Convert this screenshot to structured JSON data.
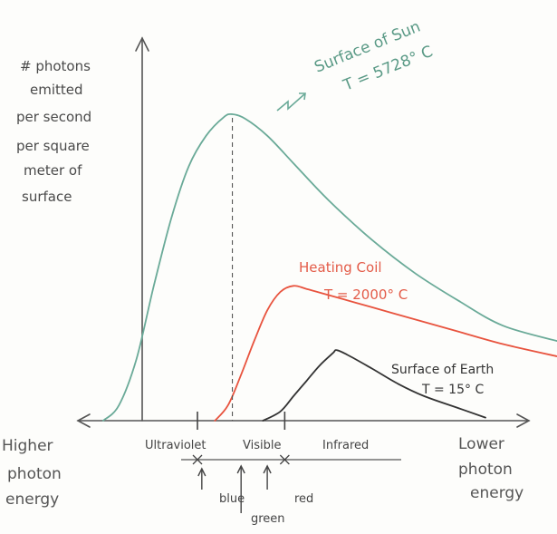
{
  "chart_data": {
    "type": "line",
    "title": "",
    "ylabel_lines": [
      "# photons",
      "emitted",
      "per second",
      "per square",
      "meter of",
      "surface"
    ],
    "x_left_label_lines": [
      "Higher",
      "photon",
      "energy"
    ],
    "x_right_label_lines": [
      "Lower",
      "photon",
      "energy"
    ],
    "regions": [
      {
        "label": "Ultraviolet",
        "from": -1.0,
        "to": 0.0
      },
      {
        "label": "Visible",
        "from": 0.0,
        "to": 1.0
      },
      {
        "label": "Infrared",
        "from": 1.0,
        "to": 2.5
      }
    ],
    "markers": [
      {
        "label": "blue",
        "x": 0.05
      },
      {
        "label": "green",
        "x": 0.5
      },
      {
        "label": "red",
        "x": 0.8
      }
    ],
    "xlim": [
      -1.37,
      4.12
    ],
    "ylim": [
      0,
      1.0
    ],
    "grid": false,
    "series": [
      {
        "name": "Surface of Sun",
        "subtitle": "T = 5728° C",
        "color": "#6aaa98",
        "peak_x": 0.4,
        "x": [
          -1.08,
          -0.9,
          -0.7,
          -0.5,
          -0.3,
          -0.1,
          0.1,
          0.3,
          0.4,
          0.55,
          0.8,
          1.1,
          1.5,
          2.0,
          2.5,
          3.0,
          3.5,
          4.12
        ],
        "y": [
          0.0,
          0.05,
          0.2,
          0.44,
          0.66,
          0.83,
          0.93,
          0.99,
          1.0,
          0.985,
          0.93,
          0.84,
          0.72,
          0.59,
          0.48,
          0.39,
          0.31,
          0.26
        ]
      },
      {
        "name": "Heating Coil",
        "subtitle": "T = 2000° C",
        "color": "#e8533e",
        "x": [
          0.2,
          0.35,
          0.5,
          0.65,
          0.8,
          0.95,
          1.1,
          1.25,
          1.5,
          2.0,
          2.5,
          3.0,
          3.5,
          4.12
        ],
        "y": [
          0.0,
          0.05,
          0.15,
          0.26,
          0.36,
          0.42,
          0.44,
          0.43,
          0.41,
          0.37,
          0.33,
          0.29,
          0.25,
          0.21
        ]
      },
      {
        "name": "Surface of Earth",
        "subtitle": "T = 15° C",
        "color": "#333333",
        "x": [
          0.75,
          0.95,
          1.1,
          1.25,
          1.4,
          1.55,
          1.6,
          1.75,
          2.0,
          2.3,
          2.6,
          3.0,
          3.3
        ],
        "y": [
          0.0,
          0.03,
          0.08,
          0.13,
          0.18,
          0.22,
          0.23,
          0.21,
          0.17,
          0.12,
          0.08,
          0.04,
          0.01
        ]
      }
    ]
  }
}
